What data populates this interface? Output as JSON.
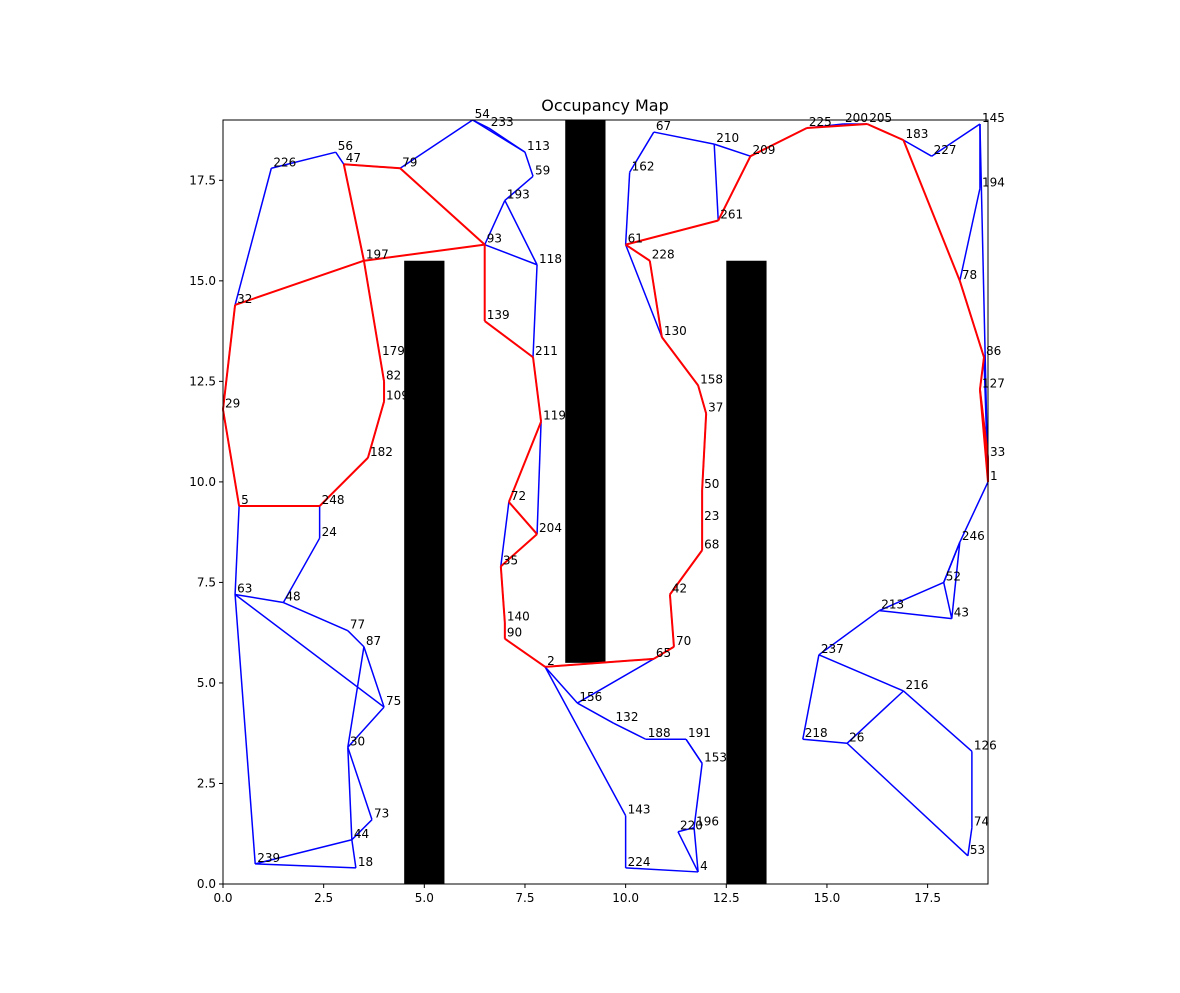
{
  "chart_data": {
    "type": "scatter",
    "title": "Occupancy Map",
    "xlabel": "",
    "ylabel": "",
    "xlim": [
      0.0,
      19.0
    ],
    "ylim": [
      0.0,
      19.0
    ],
    "x_ticks": [
      0.0,
      2.5,
      5.0,
      7.5,
      10.0,
      12.5,
      15.0,
      17.5
    ],
    "x_tick_labels": [
      "0.0",
      "2.5",
      "5.0",
      "7.5",
      "10.0",
      "12.5",
      "15.0",
      "17.5"
    ],
    "y_ticks": [
      0.0,
      2.5,
      5.0,
      7.5,
      10.0,
      12.5,
      15.0,
      17.5
    ],
    "y_tick_labels": [
      "0.0",
      "2.5",
      "5.0",
      "7.5",
      "10.0",
      "12.5",
      "15.0",
      "17.5"
    ],
    "grid": false,
    "colors": {
      "roadmap_edges": "#0000ff",
      "path_edges": "#ff0000",
      "obstacles": "#000000"
    },
    "obstacles": [
      {
        "x0": 4.5,
        "x1": 5.5,
        "y0": 0.0,
        "y1": 15.5
      },
      {
        "x0": 8.5,
        "x1": 9.5,
        "y0": 5.5,
        "y1": 19.0
      },
      {
        "x0": 12.5,
        "x1": 13.5,
        "y0": 0.0,
        "y1": 15.5
      }
    ],
    "nodes": [
      {
        "id": "1",
        "x": 19.0,
        "y": 10.0
      },
      {
        "id": "2",
        "x": 8.0,
        "y": 5.4
      },
      {
        "id": "4",
        "x": 11.8,
        "y": 0.3
      },
      {
        "id": "5",
        "x": 0.4,
        "y": 9.4
      },
      {
        "id": "18",
        "x": 3.3,
        "y": 0.4
      },
      {
        "id": "23",
        "x": 11.9,
        "y": 9.0
      },
      {
        "id": "24",
        "x": 2.4,
        "y": 8.6
      },
      {
        "id": "26",
        "x": 15.5,
        "y": 3.5
      },
      {
        "id": "29",
        "x": 0.0,
        "y": 11.8
      },
      {
        "id": "30",
        "x": 3.1,
        "y": 3.4
      },
      {
        "id": "32",
        "x": 0.3,
        "y": 14.4
      },
      {
        "id": "33",
        "x": 19.0,
        "y": 10.6
      },
      {
        "id": "35",
        "x": 6.9,
        "y": 7.9
      },
      {
        "id": "37",
        "x": 12.0,
        "y": 11.7
      },
      {
        "id": "42",
        "x": 11.1,
        "y": 7.2
      },
      {
        "id": "43",
        "x": 18.1,
        "y": 6.6
      },
      {
        "id": "44",
        "x": 3.2,
        "y": 1.1
      },
      {
        "id": "47",
        "x": 3.0,
        "y": 17.9
      },
      {
        "id": "48",
        "x": 1.5,
        "y": 7.0
      },
      {
        "id": "50",
        "x": 11.9,
        "y": 9.8
      },
      {
        "id": "52",
        "x": 17.9,
        "y": 7.5
      },
      {
        "id": "53",
        "x": 18.5,
        "y": 0.7
      },
      {
        "id": "54",
        "x": 6.2,
        "y": 19.0
      },
      {
        "id": "56",
        "x": 2.8,
        "y": 18.2
      },
      {
        "id": "59",
        "x": 7.7,
        "y": 17.6
      },
      {
        "id": "61",
        "x": 10.0,
        "y": 15.9
      },
      {
        "id": "63",
        "x": 0.3,
        "y": 7.2
      },
      {
        "id": "65",
        "x": 10.7,
        "y": 5.6
      },
      {
        "id": "67",
        "x": 10.7,
        "y": 18.7
      },
      {
        "id": "68",
        "x": 11.9,
        "y": 8.3
      },
      {
        "id": "70",
        "x": 11.2,
        "y": 5.9
      },
      {
        "id": "72",
        "x": 7.1,
        "y": 9.5
      },
      {
        "id": "73",
        "x": 3.7,
        "y": 1.6
      },
      {
        "id": "74",
        "x": 18.6,
        "y": 1.4
      },
      {
        "id": "75",
        "x": 4.0,
        "y": 4.4
      },
      {
        "id": "77",
        "x": 3.1,
        "y": 6.3
      },
      {
        "id": "78",
        "x": 18.3,
        "y": 15.0
      },
      {
        "id": "79",
        "x": 4.4,
        "y": 17.8
      },
      {
        "id": "82",
        "x": 4.0,
        "y": 12.5
      },
      {
        "id": "86",
        "x": 18.9,
        "y": 13.1
      },
      {
        "id": "87",
        "x": 3.5,
        "y": 5.9
      },
      {
        "id": "90",
        "x": 7.0,
        "y": 6.1
      },
      {
        "id": "109",
        "x": 4.0,
        "y": 12.0
      },
      {
        "id": "113",
        "x": 7.5,
        "y": 18.2
      },
      {
        "id": "118",
        "x": 7.8,
        "y": 15.4
      },
      {
        "id": "119",
        "x": 7.9,
        "y": 11.5
      },
      {
        "id": "126",
        "x": 18.6,
        "y": 3.3
      },
      {
        "id": "127",
        "x": 18.8,
        "y": 12.3
      },
      {
        "id": "130",
        "x": 10.9,
        "y": 13.6
      },
      {
        "id": "140",
        "x": 7.0,
        "y": 6.5
      },
      {
        "id": "145",
        "x": 18.8,
        "y": 18.9
      },
      {
        "id": "153",
        "x": 11.9,
        "y": 3.0
      },
      {
        "id": "156",
        "x": 8.8,
        "y": 4.5
      },
      {
        "id": "158",
        "x": 11.8,
        "y": 12.4
      },
      {
        "id": "162",
        "x": 10.1,
        "y": 17.7
      },
      {
        "id": "179",
        "x": 3.9,
        "y": 13.1
      },
      {
        "id": "182",
        "x": 3.6,
        "y": 10.6
      },
      {
        "id": "183",
        "x": 16.9,
        "y": 18.5
      },
      {
        "id": "191",
        "x": 11.5,
        "y": 3.6
      },
      {
        "id": "193",
        "x": 7.0,
        "y": 17.0
      },
      {
        "id": "194",
        "x": 18.8,
        "y": 17.3
      },
      {
        "id": "196",
        "x": 11.7,
        "y": 1.4
      },
      {
        "id": "200",
        "x": 15.4,
        "y": 18.9
      },
      {
        "id": "204",
        "x": 7.8,
        "y": 8.7
      },
      {
        "id": "205",
        "x": 16.0,
        "y": 18.9
      },
      {
        "id": "209",
        "x": 13.1,
        "y": 18.1
      },
      {
        "id": "210",
        "x": 12.2,
        "y": 18.4
      },
      {
        "id": "211",
        "x": 7.7,
        "y": 13.1
      },
      {
        "id": "216",
        "x": 16.9,
        "y": 4.8
      },
      {
        "id": "218",
        "x": 14.4,
        "y": 3.6
      },
      {
        "id": "225",
        "x": 14.5,
        "y": 18.8
      },
      {
        "id": "226",
        "x": 1.2,
        "y": 17.8
      },
      {
        "id": "227",
        "x": 17.6,
        "y": 18.1
      },
      {
        "id": "228",
        "x": 10.6,
        "y": 15.5
      },
      {
        "id": "233",
        "x": 6.6,
        "y": 18.8
      },
      {
        "id": "246",
        "x": 18.3,
        "y": 8.5
      },
      {
        "id": "261",
        "x": 12.3,
        "y": 16.5
      },
      {
        "id": "220",
        "x": 11.3,
        "y": 1.3
      },
      {
        "id": "224",
        "x": 10.0,
        "y": 0.4
      },
      {
        "id": "239",
        "x": 0.8,
        "y": 0.5
      },
      {
        "id": "248",
        "x": 2.4,
        "y": 9.4
      },
      {
        "id": "237",
        "x": 14.8,
        "y": 5.7
      },
      {
        "id": "213",
        "x": 16.3,
        "y": 6.8
      },
      {
        "id": "143",
        "x": 10.0,
        "y": 1.7
      },
      {
        "id": "132",
        "x": 9.7,
        "y": 4.0
      },
      {
        "id": "188",
        "x": 10.5,
        "y": 3.6
      },
      {
        "id": "139",
        "x": 6.5,
        "y": 14.0
      },
      {
        "id": "93",
        "x": 6.5,
        "y": 15.9
      },
      {
        "id": "197",
        "x": 3.5,
        "y": 15.5
      }
    ],
    "edges": [
      [
        "29",
        "32"
      ],
      [
        "32",
        "226"
      ],
      [
        "226",
        "56"
      ],
      [
        "56",
        "47"
      ],
      [
        "47",
        "79"
      ],
      [
        "79",
        "54"
      ],
      [
        "54",
        "233"
      ],
      [
        "233",
        "113"
      ],
      [
        "113",
        "59"
      ],
      [
        "59",
        "193"
      ],
      [
        "193",
        "93"
      ],
      [
        "93",
        "118"
      ],
      [
        "118",
        "211"
      ],
      [
        "211",
        "119"
      ],
      [
        "119",
        "204"
      ],
      [
        "204",
        "72"
      ],
      [
        "72",
        "35"
      ],
      [
        "35",
        "140"
      ],
      [
        "140",
        "90"
      ],
      [
        "90",
        "2"
      ],
      [
        "2",
        "156"
      ],
      [
        "156",
        "132"
      ],
      [
        "132",
        "188"
      ],
      [
        "188",
        "191"
      ],
      [
        "191",
        "153"
      ],
      [
        "153",
        "196"
      ],
      [
        "196",
        "220"
      ],
      [
        "220",
        "4"
      ],
      [
        "4",
        "224"
      ],
      [
        "224",
        "143"
      ],
      [
        "143",
        "2"
      ],
      [
        "29",
        "5"
      ],
      [
        "5",
        "63"
      ],
      [
        "63",
        "48"
      ],
      [
        "48",
        "24"
      ],
      [
        "24",
        "248"
      ],
      [
        "248",
        "182"
      ],
      [
        "182",
        "109"
      ],
      [
        "109",
        "82"
      ],
      [
        "82",
        "179"
      ],
      [
        "179",
        "197"
      ],
      [
        "197",
        "47"
      ],
      [
        "63",
        "75"
      ],
      [
        "75",
        "87"
      ],
      [
        "87",
        "77"
      ],
      [
        "77",
        "48"
      ],
      [
        "75",
        "30"
      ],
      [
        "30",
        "73"
      ],
      [
        "73",
        "44"
      ],
      [
        "44",
        "18"
      ],
      [
        "18",
        "239"
      ],
      [
        "239",
        "63"
      ],
      [
        "30",
        "44"
      ],
      [
        "87",
        "30"
      ],
      [
        "61",
        "162"
      ],
      [
        "162",
        "67"
      ],
      [
        "67",
        "210"
      ],
      [
        "210",
        "209"
      ],
      [
        "209",
        "225"
      ],
      [
        "225",
        "200"
      ],
      [
        "200",
        "205"
      ],
      [
        "205",
        "183"
      ],
      [
        "183",
        "227"
      ],
      [
        "227",
        "145"
      ],
      [
        "145",
        "194"
      ],
      [
        "194",
        "78"
      ],
      [
        "78",
        "86"
      ],
      [
        "86",
        "127"
      ],
      [
        "127",
        "33"
      ],
      [
        "33",
        "1"
      ],
      [
        "1",
        "246"
      ],
      [
        "246",
        "52"
      ],
      [
        "52",
        "43"
      ],
      [
        "43",
        "213"
      ],
      [
        "213",
        "237"
      ],
      [
        "237",
        "216"
      ],
      [
        "216",
        "126"
      ],
      [
        "126",
        "74"
      ],
      [
        "74",
        "53"
      ],
      [
        "53",
        "26"
      ],
      [
        "26",
        "218"
      ],
      [
        "218",
        "237"
      ],
      [
        "216",
        "26"
      ],
      [
        "61",
        "130"
      ],
      [
        "130",
        "158"
      ],
      [
        "158",
        "37"
      ],
      [
        "37",
        "50"
      ],
      [
        "50",
        "23"
      ],
      [
        "23",
        "68"
      ],
      [
        "68",
        "42"
      ],
      [
        "42",
        "70"
      ],
      [
        "70",
        "65"
      ],
      [
        "65",
        "2"
      ],
      [
        "261",
        "210"
      ],
      [
        "228",
        "61"
      ],
      [
        "209",
        "261"
      ],
      [
        "145",
        "1"
      ],
      [
        "86",
        "1"
      ],
      [
        "52",
        "246"
      ],
      [
        "43",
        "246"
      ],
      [
        "213",
        "52"
      ],
      [
        "156",
        "65"
      ],
      [
        "153",
        "191"
      ],
      [
        "196",
        "4"
      ],
      [
        "239",
        "44"
      ],
      [
        "54",
        "113"
      ],
      [
        "193",
        "118"
      ],
      [
        "139",
        "93"
      ],
      [
        "139",
        "211"
      ],
      [
        "228",
        "130"
      ]
    ],
    "path_edges": [
      [
        "29",
        "32"
      ],
      [
        "32",
        "197"
      ],
      [
        "197",
        "179"
      ],
      [
        "179",
        "82"
      ],
      [
        "82",
        "109"
      ],
      [
        "109",
        "182"
      ],
      [
        "182",
        "248"
      ],
      [
        "248",
        "5"
      ],
      [
        "5",
        "29"
      ],
      [
        "197",
        "93"
      ],
      [
        "93",
        "139"
      ],
      [
        "139",
        "211"
      ],
      [
        "211",
        "119"
      ],
      [
        "119",
        "72"
      ],
      [
        "72",
        "204"
      ],
      [
        "204",
        "35"
      ],
      [
        "35",
        "140"
      ],
      [
        "140",
        "90"
      ],
      [
        "90",
        "2"
      ],
      [
        "2",
        "65"
      ],
      [
        "65",
        "70"
      ],
      [
        "70",
        "42"
      ],
      [
        "42",
        "68"
      ],
      [
        "68",
        "23"
      ],
      [
        "23",
        "50"
      ],
      [
        "50",
        "37"
      ],
      [
        "37",
        "158"
      ],
      [
        "158",
        "130"
      ],
      [
        "130",
        "228"
      ],
      [
        "228",
        "61"
      ],
      [
        "61",
        "261"
      ],
      [
        "261",
        "209"
      ],
      [
        "209",
        "225"
      ],
      [
        "225",
        "205"
      ],
      [
        "205",
        "183"
      ],
      [
        "183",
        "78"
      ],
      [
        "78",
        "86"
      ],
      [
        "86",
        "127"
      ],
      [
        "127",
        "1"
      ],
      [
        "1",
        "33"
      ],
      [
        "33",
        "127"
      ],
      [
        "197",
        "47"
      ],
      [
        "47",
        "79"
      ],
      [
        "79",
        "93"
      ]
    ]
  }
}
